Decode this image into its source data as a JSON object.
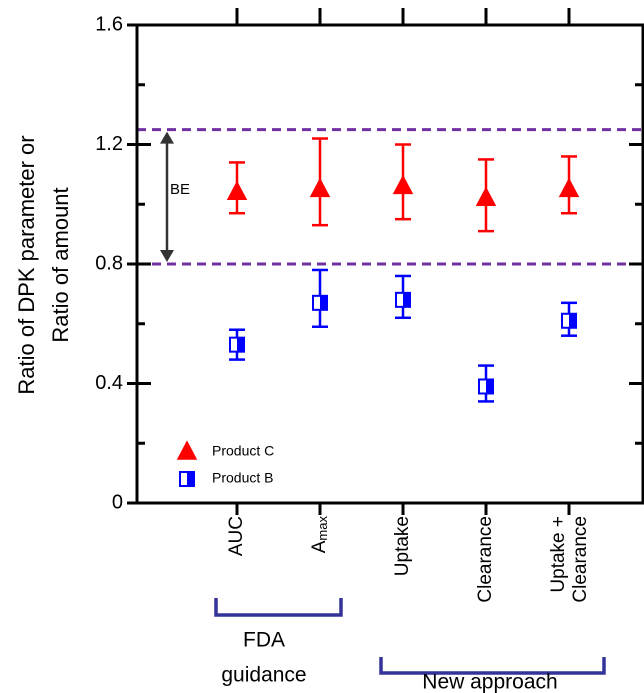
{
  "chart_data": {
    "type": "errorbar",
    "y_label": [
      "Ratio of DPK parameter or",
      "Ratio of amount"
    ],
    "categories": [
      "AUC",
      {
        "text": "A",
        "subscript": "max"
      },
      "Uptake",
      "Clearance",
      {
        "lines": [
          "Uptake +",
          "Clearance"
        ]
      }
    ],
    "series": [
      {
        "name": "Product C",
        "color": "#ff0000",
        "marker": "triangle",
        "values": [
          1.04,
          1.05,
          1.06,
          1.02,
          1.05
        ],
        "lower": [
          0.97,
          0.93,
          0.95,
          0.91,
          0.97
        ],
        "upper": [
          1.14,
          1.22,
          1.2,
          1.15,
          1.16
        ]
      },
      {
        "name": "Product B",
        "color": "#0000ff",
        "marker": "half-square",
        "values": [
          0.53,
          0.67,
          0.68,
          0.39,
          0.61
        ],
        "lower": [
          0.48,
          0.59,
          0.62,
          0.34,
          0.56
        ],
        "upper": [
          0.58,
          0.78,
          0.76,
          0.46,
          0.67
        ]
      }
    ],
    "ylim": [
      0,
      1.6
    ],
    "yticks": [
      0,
      0.4,
      0.8,
      1.2,
      1.6
    ],
    "minor_yticks": [
      0.2,
      0.6,
      1.0,
      1.4
    ],
    "reference_lines": [
      1.25,
      0.8
    ],
    "reference_color": "#7030a0",
    "annotation": "BE",
    "groups": [
      {
        "label": [
          "FDA",
          "guidance"
        ]
      },
      {
        "label": [
          "New approach"
        ]
      }
    ],
    "group_color": "#333399",
    "legend": "lower left"
  }
}
